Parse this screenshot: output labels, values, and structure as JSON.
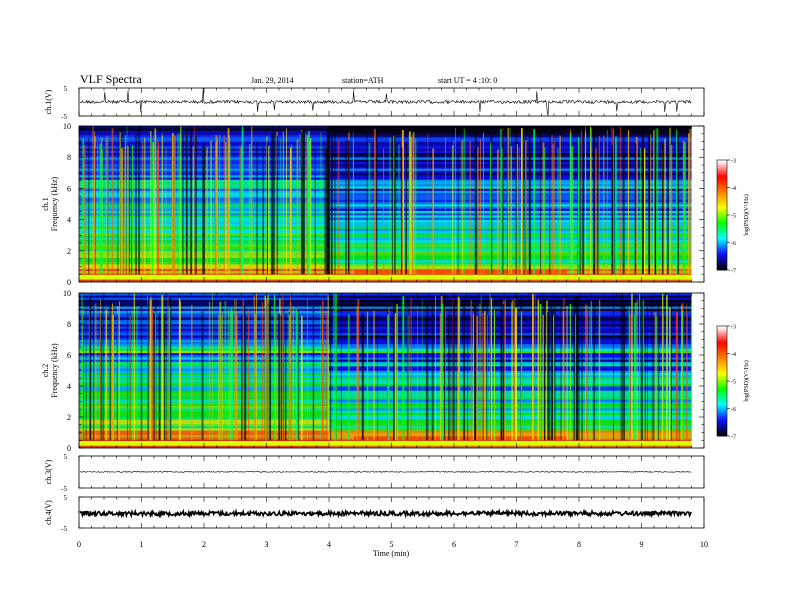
{
  "header": {
    "title": "VLF  Spectra",
    "date": "Jan. 29, 2014",
    "station": "station=ATH",
    "start": "start  UT  =   4  :10: 0"
  },
  "chart_data": {
    "type": "heatmap",
    "title": "VLF  Spectra",
    "xlabel": "Time  (min)",
    "xlim": [
      0,
      10
    ],
    "x_ticks": [
      "0",
      "1",
      "2",
      "3",
      "4",
      "5",
      "6",
      "7",
      "8",
      "9",
      "10"
    ],
    "data_end_min": 9.8,
    "waveforms": [
      {
        "name": "ch.1",
        "ylabel": "ch.1(V)",
        "ylim": [
          -5,
          5
        ],
        "y_ticks": [
          "5",
          "-5"
        ],
        "baseline": 0.05,
        "noise": "bursty"
      },
      {
        "name": "ch.3",
        "ylabel": "ch.3(V)",
        "ylim": [
          -5,
          5
        ],
        "y_ticks": [
          "5",
          "-5"
        ],
        "baseline": 0.05,
        "noise": "flat"
      },
      {
        "name": "ch.4",
        "ylabel": "ch.4(V)",
        "ylim": [
          -5,
          5
        ],
        "y_ticks": [
          "5",
          "-5"
        ],
        "baseline": -0.3,
        "noise": "thick"
      }
    ],
    "spectrograms": [
      {
        "name": "ch.1",
        "ylabel_channel": "ch.1",
        "ylabel": "Frequency  (kHz)",
        "ylim": [
          0,
          10
        ],
        "y_ticks": [
          "0",
          "2",
          "4",
          "6",
          "8",
          "10"
        ],
        "regime_change_min": 4.0
      },
      {
        "name": "ch.2",
        "ylabel_channel": "ch.2",
        "ylabel": "Frequency  (kHz)",
        "ylim": [
          0,
          10
        ],
        "y_ticks": [
          "0",
          "2",
          "4",
          "6",
          "8",
          "10"
        ],
        "regime_change_min": 4.0
      }
    ],
    "colorbar": {
      "label": "log(PSD)(V²/Hz)",
      "range": [
        -7,
        -3
      ],
      "ticks": [
        "-3",
        "-4",
        "-5",
        "-6",
        "-7"
      ],
      "colormap": [
        "#000000",
        "#1010ff",
        "#00ffff",
        "#00ff00",
        "#ffff00",
        "#ff8000",
        "#ff0000",
        "#ffffff"
      ]
    }
  }
}
